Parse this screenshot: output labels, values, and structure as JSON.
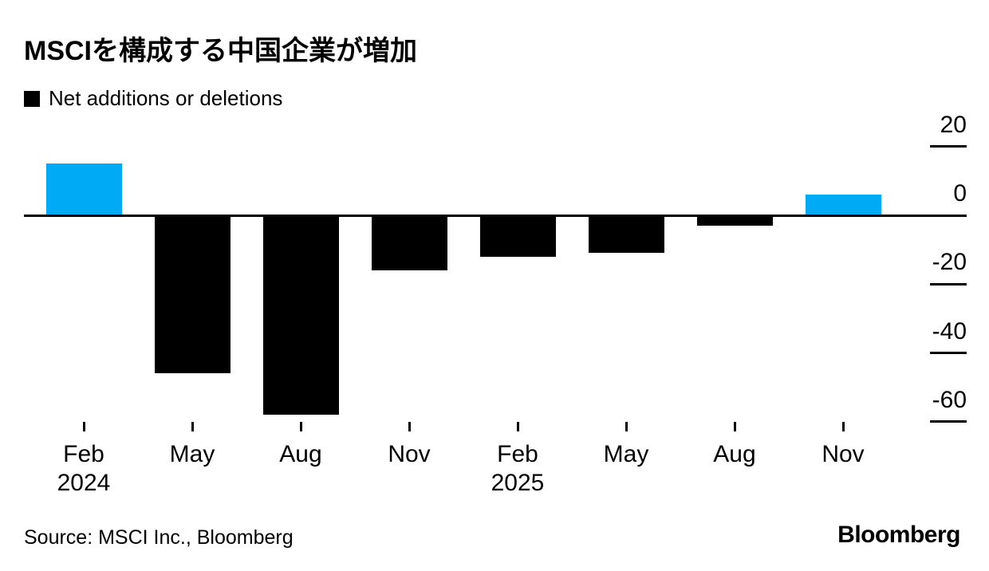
{
  "title": "MSCIを構成する中国企業が増加",
  "legend": {
    "label": "Net additions or deletions",
    "swatch_color": "#000000"
  },
  "source": "Source: MSCI Inc., Bloomberg",
  "branding": "Bloomberg",
  "colors": {
    "positive": "#00AAF4",
    "negative": "#000000",
    "axis": "#000000",
    "background": "#FFFFFF",
    "text": "#000000"
  },
  "chart_data": {
    "type": "bar",
    "title": "MSCIを構成する中国企業が増加",
    "series_label": "Net additions or deletions",
    "categories": [
      "Feb 2024",
      "May 2024",
      "Aug 2024",
      "Nov 2024",
      "Feb 2025",
      "May 2025",
      "Aug 2025",
      "Nov 2025"
    ],
    "x_tick_labels": [
      {
        "month": "Feb",
        "year": "2024"
      },
      {
        "month": "May"
      },
      {
        "month": "Aug"
      },
      {
        "month": "Nov"
      },
      {
        "month": "Feb",
        "year": "2025"
      },
      {
        "month": "May"
      },
      {
        "month": "Aug"
      },
      {
        "month": "Nov"
      }
    ],
    "values": [
      15,
      -46,
      -58,
      -16,
      -12,
      -11,
      -3,
      6
    ],
    "positive_color_rule": "positive values are blue, negative values are black",
    "y_ticks": [
      20,
      0,
      -20,
      -40,
      -60
    ],
    "ylim": [
      -65,
      22
    ],
    "xlabel": "",
    "ylabel": "",
    "grid": false,
    "legend_position": "top-left",
    "y_axis_side": "right"
  }
}
